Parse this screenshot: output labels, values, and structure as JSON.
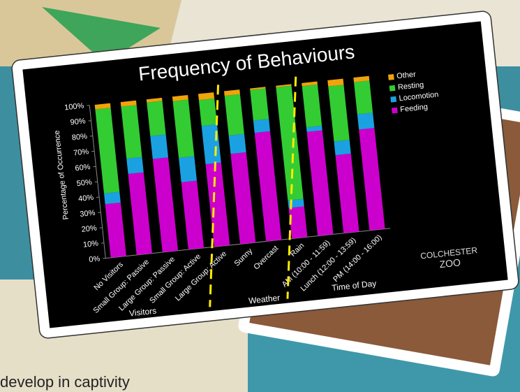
{
  "chart_data": {
    "type": "stacked_bar",
    "title": "Frequency of Behaviours",
    "y_label": "Percentage of Occurrence",
    "categories": [
      "No Visitors",
      "Small Group: Passive",
      "Large Group: Passive",
      "Small Group: Active",
      "Large Group: Active",
      "Sunny",
      "Overcast",
      "Rain",
      "AM (10:00 - 11:59)",
      "Lunch (12:00 - 13:59)",
      "PM (14:00 - 16:00)"
    ],
    "group_labels": [
      "Visitors",
      "Weather",
      "Time of Day"
    ],
    "series": [
      {
        "name": "Feeding",
        "color": "#cc00cc",
        "values": [
          35,
          53,
          61,
          44,
          54,
          59,
          71,
          20,
          68,
          51,
          66
        ]
      },
      {
        "name": "Locomotion",
        "color": "#1ba1e2",
        "values": [
          7,
          10,
          15,
          16,
          25,
          12,
          8,
          5,
          3,
          9,
          10
        ]
      },
      {
        "name": "Resting",
        "color": "#33cc33",
        "values": [
          55,
          34,
          22,
          37,
          17,
          26,
          20,
          74,
          27,
          36,
          21
        ]
      },
      {
        "name": "Other",
        "color": "#f0a30a",
        "values": [
          3,
          3,
          2,
          3,
          4,
          3,
          1,
          1,
          2,
          4,
          3
        ]
      }
    ],
    "ylim": [
      0,
      100
    ],
    "yticks": [
      {
        "value": 0,
        "label": "0%"
      },
      {
        "value": 10,
        "label": "10%"
      },
      {
        "value": 20,
        "label": "20%"
      },
      {
        "value": 30,
        "label": "30%"
      },
      {
        "value": 40,
        "label": "40%"
      },
      {
        "value": 50,
        "label": "50%"
      },
      {
        "value": 60,
        "label": "60%"
      },
      {
        "value": 70,
        "label": "70%"
      },
      {
        "value": 80,
        "label": "80%"
      },
      {
        "value": 90,
        "label": "90%"
      },
      {
        "value": 100,
        "label": "100%"
      }
    ],
    "logo": [
      "COLCHESTER",
      "ZOO"
    ]
  },
  "slide_text": "develop in captivity"
}
